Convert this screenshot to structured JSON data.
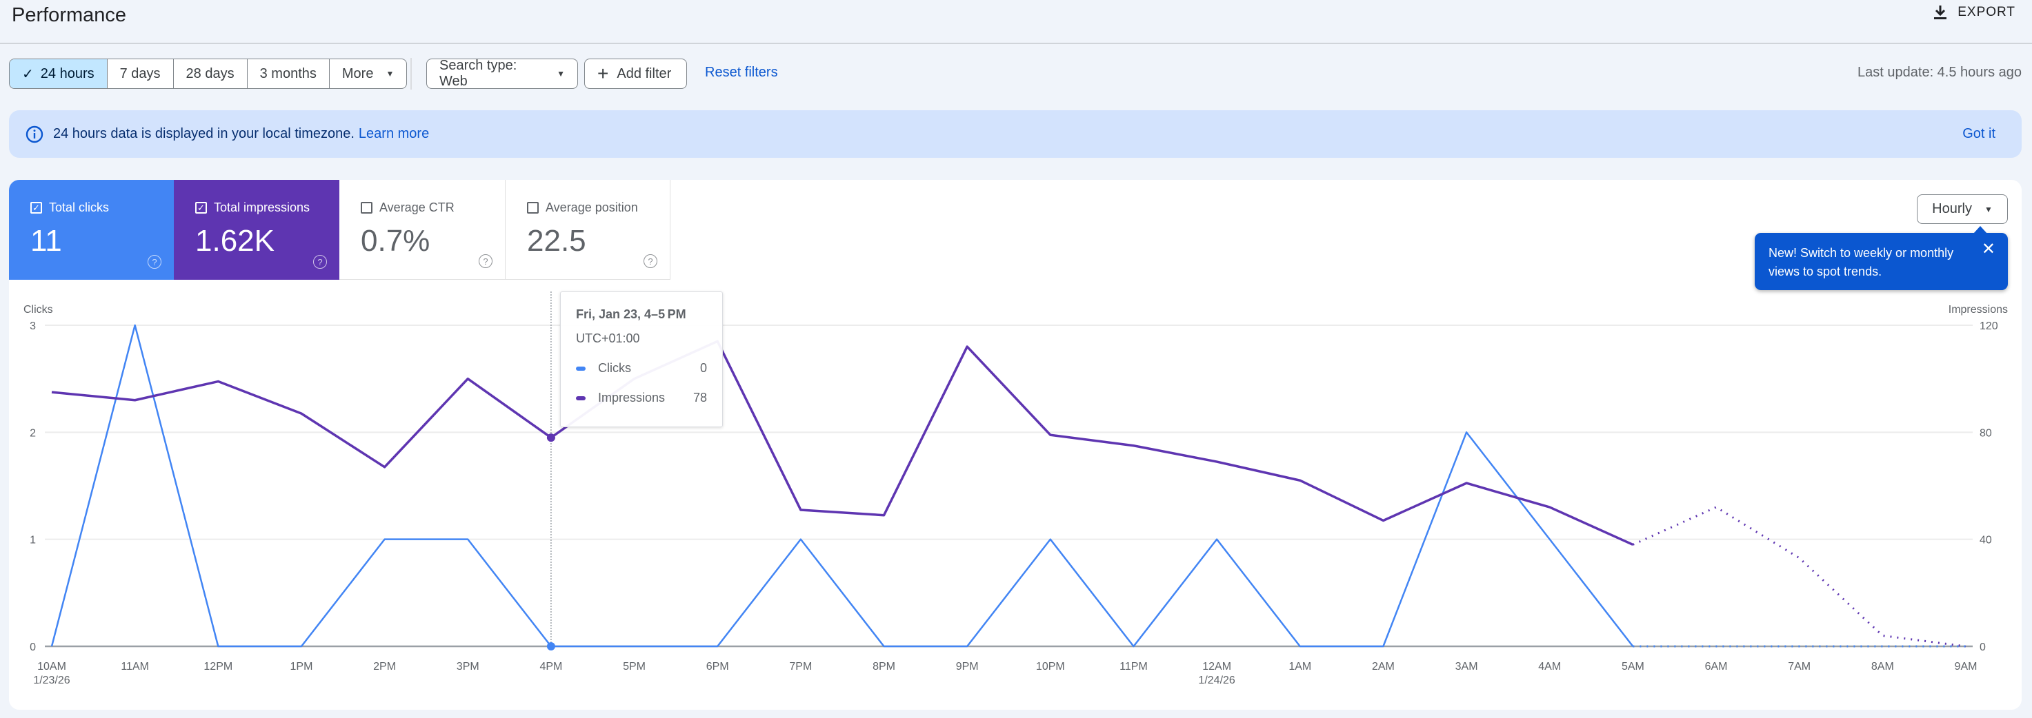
{
  "header": {
    "title": "Performance",
    "export_label": "EXPORT"
  },
  "filters": {
    "ranges": [
      {
        "label": "24 hours",
        "selected": true
      },
      {
        "label": "7 days",
        "selected": false
      },
      {
        "label": "28 days",
        "selected": false
      },
      {
        "label": "3 months",
        "selected": false
      }
    ],
    "more_label": "More",
    "search_type_label": "Search type: Web",
    "add_filter_label": "Add filter",
    "reset_label": "Reset filters",
    "last_update": "Last update: 4.5 hours ago"
  },
  "banner": {
    "text": "24 hours data is displayed in your local timezone.",
    "link": "Learn more",
    "dismiss": "Got it"
  },
  "metrics": [
    {
      "label": "Total clicks",
      "value": "11",
      "checked": true,
      "color": "#4285f4"
    },
    {
      "label": "Total impressions",
      "value": "1.62K",
      "checked": true,
      "color": "#5e35b1"
    },
    {
      "label": "Average CTR",
      "value": "0.7%",
      "checked": false
    },
    {
      "label": "Average position",
      "value": "22.5",
      "checked": false
    }
  ],
  "granularity": {
    "selected": "Hourly"
  },
  "promo": {
    "text": "New! Switch to weekly or monthly views to spot trends."
  },
  "tooltip": {
    "title": "Fri, Jan 23, 4–5 PM",
    "timezone": "UTC+01:00",
    "rows": [
      {
        "label": "Clicks",
        "value": "0"
      },
      {
        "label": "Impressions",
        "value": "78"
      }
    ]
  },
  "chart_data": {
    "type": "line",
    "x": [
      "10AM",
      "11AM",
      "12PM",
      "1PM",
      "2PM",
      "3PM",
      "4PM",
      "5PM",
      "6PM",
      "7PM",
      "8PM",
      "9PM",
      "10PM",
      "11PM",
      "12AM",
      "1AM",
      "2AM",
      "3AM",
      "4AM",
      "5AM",
      "6AM",
      "7AM",
      "8AM",
      "9AM"
    ],
    "x_sublabels": {
      "10AM": "1/23/26",
      "12AM": "1/24/26"
    },
    "series": [
      {
        "name": "Clicks",
        "axis": "left",
        "color": "#4285f4",
        "values": [
          0,
          3,
          0,
          0,
          1,
          1,
          0,
          0,
          0,
          1,
          0,
          0,
          1,
          0,
          1,
          0,
          0,
          2,
          1,
          0,
          0,
          0,
          0,
          0
        ]
      },
      {
        "name": "Impressions",
        "axis": "right",
        "color": "#5e35b1",
        "values": [
          95,
          92,
          99,
          87,
          67,
          100,
          78,
          100,
          114,
          51,
          49,
          112,
          79,
          75,
          69,
          62,
          47,
          61,
          52,
          38,
          52,
          33,
          4,
          0
        ]
      }
    ],
    "partial_from_index": 19,
    "ylabel_left": "Clicks",
    "ylim_left": [
      0,
      3
    ],
    "yticks_left": [
      "0",
      "1",
      "2",
      "3"
    ],
    "ylabel_right": "Impressions",
    "ylim_right": [
      0,
      120
    ],
    "yticks_right": [
      "0",
      "40",
      "80",
      "120"
    ],
    "highlight_index": 6,
    "grid": true
  }
}
